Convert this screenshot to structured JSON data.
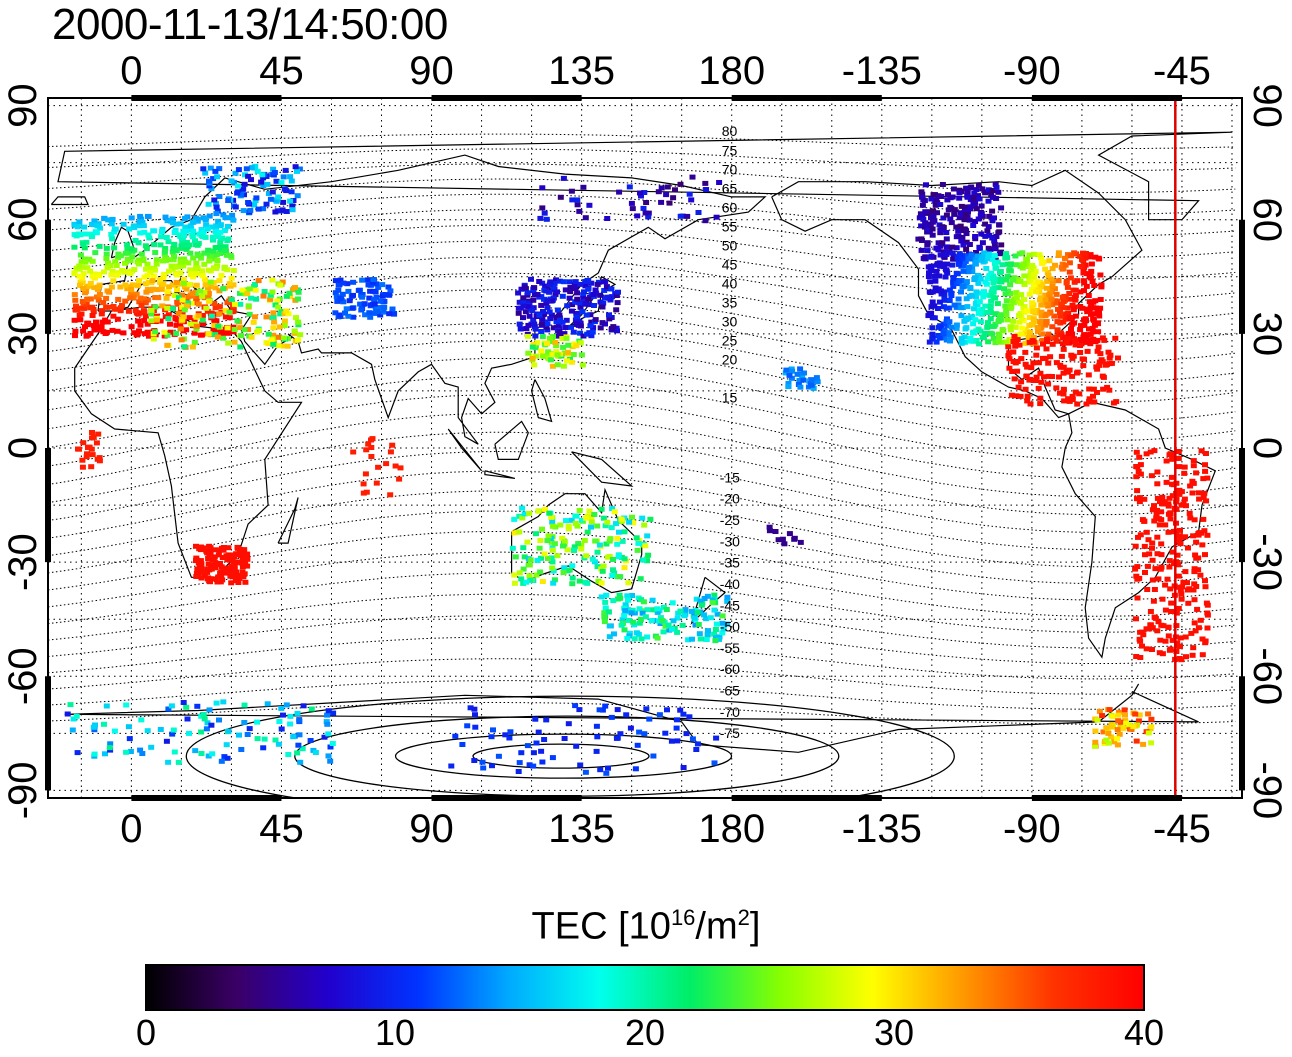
{
  "title": "2000-11-13/14:50:00",
  "axes": {
    "lon_ticks_top": [
      "0",
      "45",
      "90",
      "135",
      "180",
      "-135",
      "-90",
      "-45"
    ],
    "lon_ticks_bottom": [
      "0",
      "45",
      "90",
      "135",
      "180",
      "-135",
      "-90",
      "-45"
    ],
    "lat_ticks_left": [
      "90",
      "60",
      "30",
      "0",
      "-30",
      "-60",
      "-90"
    ],
    "lat_ticks_right": [
      "90",
      "60",
      "30",
      "0",
      "-30",
      "-60",
      "-90"
    ],
    "lon_range": [
      -25,
      333
    ],
    "lat_range": [
      -92,
      92
    ],
    "grid": "dotted",
    "marker_line_lon": -47
  },
  "contour_labels_north": [
    "80",
    "75",
    "70",
    "65",
    "60",
    "55",
    "50",
    "45",
    "40",
    "35",
    "30",
    "25",
    "20",
    "15"
  ],
  "contour_labels_south": [
    "-15",
    "-20",
    "-25",
    "-30",
    "-35",
    "-40",
    "-45",
    "-50",
    "-55",
    "-60",
    "-65",
    "-70",
    "-75"
  ],
  "colorbar": {
    "label_main": "TEC  [10",
    "label_sup1": "16",
    "label_mid": "/m",
    "label_sup2": "2",
    "label_end": "]",
    "ticks": [
      "0",
      "10",
      "20",
      "30",
      "40"
    ],
    "range": [
      0,
      40
    ],
    "colors": [
      "#000000",
      "#3a0066",
      "#2200cc",
      "#0033ff",
      "#00aaff",
      "#00ffee",
      "#00ee66",
      "#88ff00",
      "#ffff00",
      "#ff9900",
      "#ff3300",
      "#ff0000"
    ]
  },
  "chart_data": {
    "type": "heatmap",
    "title": "2000-11-13/14:50:00",
    "xlabel": "",
    "ylabel": "",
    "value_label": "TEC  [10^16/m^2]",
    "value_range": [
      0,
      40
    ],
    "regions": [
      {
        "lon": [
          -15,
          45
        ],
        "lat": [
          25,
          72
        ],
        "tec": [
          12,
          40
        ]
      },
      {
        "lon": [
          -125,
          -60
        ],
        "lat": [
          20,
          70
        ],
        "tec": [
          5,
          40
        ]
      },
      {
        "lon": [
          -60,
          -35
        ],
        "lat": [
          -60,
          5
        ],
        "tec": [
          38,
          40
        ]
      },
      {
        "lon": [
          15,
          35
        ],
        "lat": [
          -35,
          -25
        ],
        "tec": [
          38,
          40
        ]
      },
      {
        "lon": [
          115,
          150
        ],
        "lat": [
          20,
          45
        ],
        "tec": [
          5,
          32
        ]
      },
      {
        "lon": [
          115,
          180
        ],
        "lat": [
          -50,
          -10
        ],
        "tec": [
          10,
          32
        ]
      },
      {
        "lon": [
          -10,
          50
        ],
        "lat": [
          -80,
          -65
        ],
        "tec": [
          8,
          22
        ]
      },
      {
        "lon": [
          55,
          75
        ],
        "lat": [
          30,
          45
        ],
        "tec": [
          10,
          14
        ]
      }
    ]
  }
}
